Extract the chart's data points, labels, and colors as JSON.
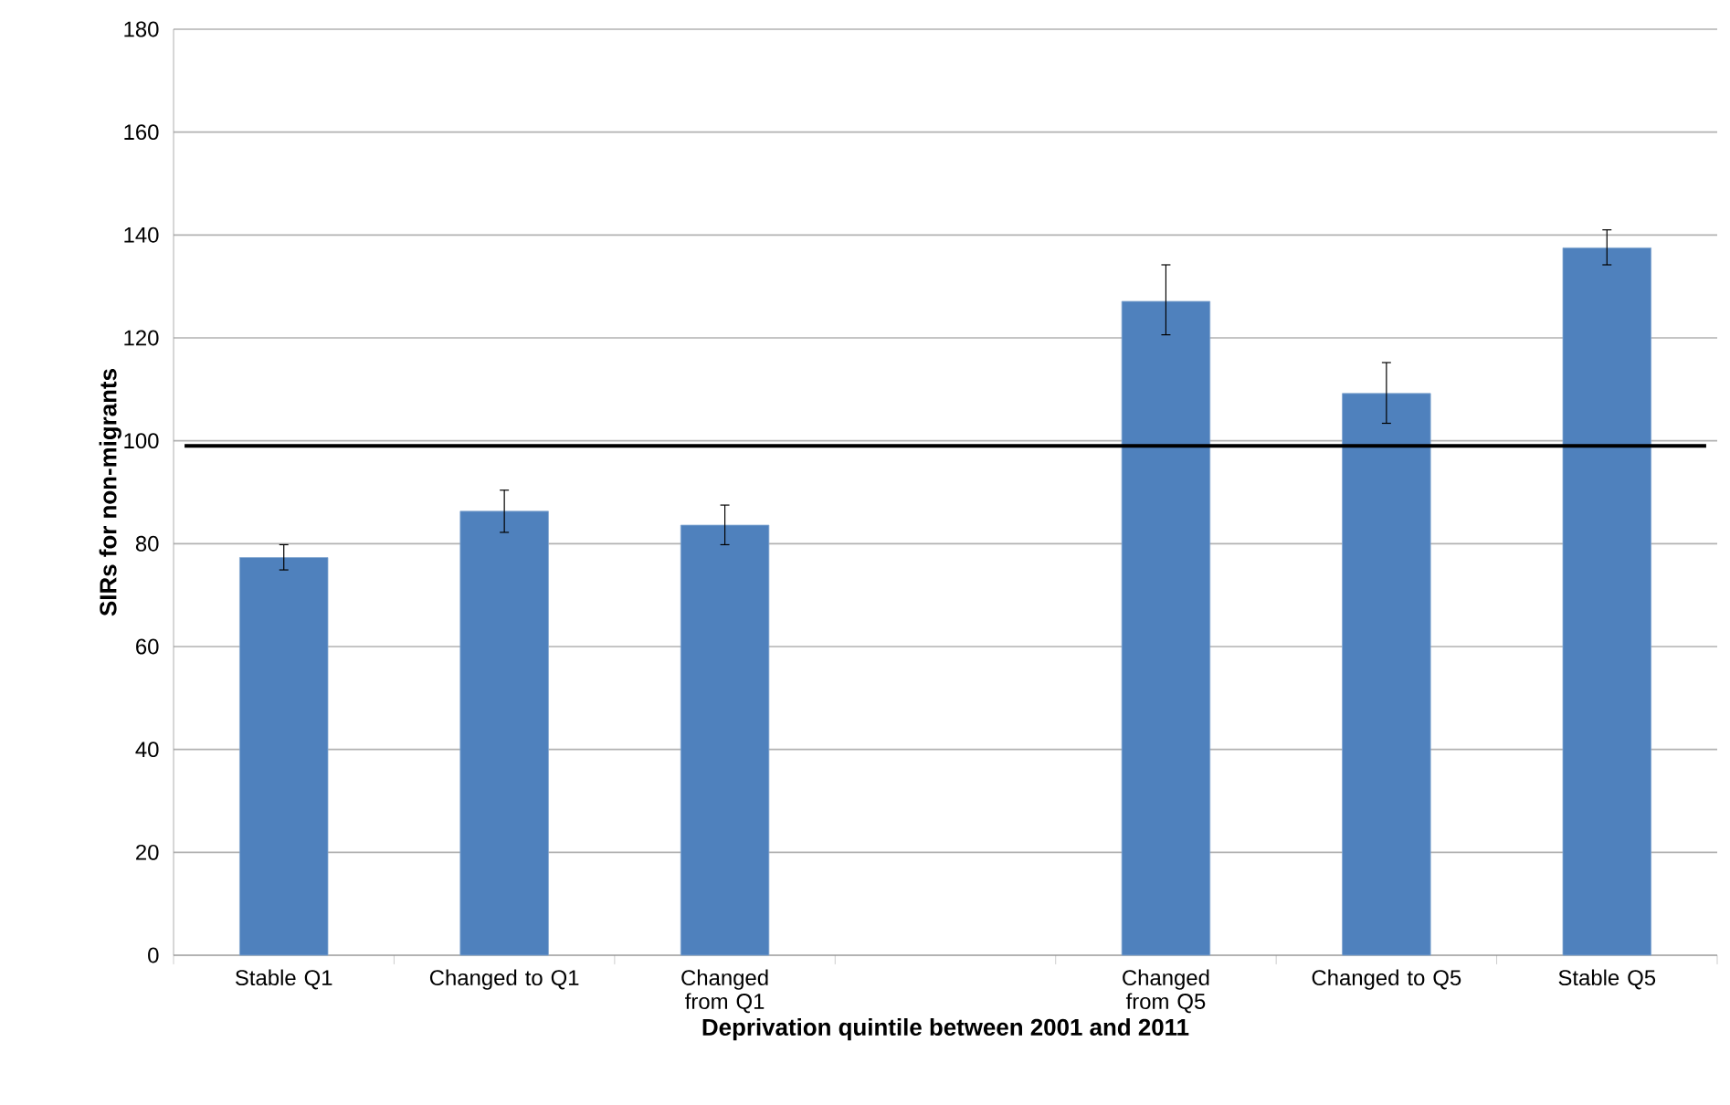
{
  "chart_data": {
    "type": "bar",
    "xlabel": "Deprivation quintile between 2001 and 2011",
    "ylabel": "SIRs for non-migrants",
    "categories": [
      "Stable Q1",
      "Changed to Q1",
      "Changed from Q1",
      null,
      "Changed from Q5",
      "Changed to Q5",
      "Stable Q5"
    ],
    "values": [
      77.3,
      86.3,
      83.6,
      null,
      127.1,
      109.2,
      137.5
    ],
    "errors": [
      [
        74.9,
        79.8
      ],
      [
        82.2,
        90.4
      ],
      [
        79.8,
        87.5
      ],
      null,
      [
        120.6,
        134.2
      ],
      [
        103.4,
        115.2
      ],
      [
        134.2,
        141.0
      ]
    ],
    "color": "#4f81bd",
    "ylim": [
      0,
      180
    ],
    "yticks": [
      0,
      20,
      40,
      60,
      80,
      100,
      120,
      140,
      160,
      180
    ],
    "grid": "y",
    "ref_lines": [
      {
        "axis": "y",
        "value": 99,
        "color": "#000000"
      }
    ]
  }
}
